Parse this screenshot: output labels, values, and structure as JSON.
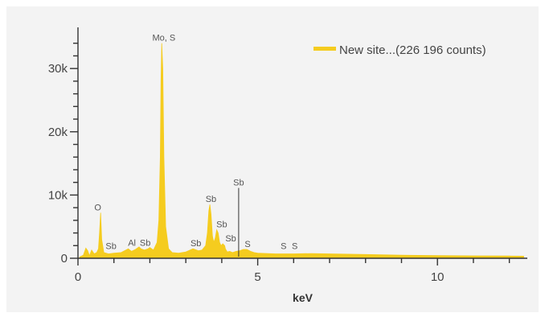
{
  "chart_data": {
    "type": "area",
    "title": "",
    "xlabel": "keV",
    "ylabel": "",
    "xlim": [
      0,
      12.5
    ],
    "ylim": [
      0,
      36000
    ],
    "x_ticks": [
      0,
      5,
      10
    ],
    "x_tick_labels": [
      "0",
      "5",
      "10"
    ],
    "y_ticks": [
      0,
      10000,
      20000,
      30000
    ],
    "y_tick_labels": [
      "0",
      "10k",
      "20k",
      "30k"
    ],
    "grid": false,
    "legend_position": "top-right",
    "fill_color": "#f5cc1f",
    "series": [
      {
        "name": "New site...(226 196 counts)",
        "x": [
          0.05,
          0.15,
          0.22,
          0.27,
          0.32,
          0.38,
          0.45,
          0.52,
          0.57,
          0.6,
          0.63,
          0.66,
          0.72,
          0.85,
          1.0,
          1.2,
          1.4,
          1.49,
          1.6,
          1.7,
          1.75,
          1.85,
          1.95,
          2.0,
          2.1,
          2.2,
          2.25,
          2.29,
          2.31,
          2.33,
          2.36,
          2.39,
          2.44,
          2.52,
          2.62,
          2.8,
          3.0,
          3.2,
          3.35,
          3.45,
          3.55,
          3.6,
          3.64,
          3.67,
          3.7,
          3.74,
          3.78,
          3.82,
          3.86,
          3.9,
          3.94,
          3.98,
          4.03,
          4.08,
          4.1,
          4.15,
          4.22,
          4.3,
          4.4,
          4.5,
          4.6,
          4.7,
          4.8,
          4.9,
          5.0,
          5.5,
          6.0,
          6.5,
          7.0,
          7.5,
          8.0,
          9.0,
          10.0,
          11.0,
          12.0,
          12.4
        ],
        "y": [
          200,
          500,
          1600,
          1200,
          400,
          1300,
          700,
          900,
          1500,
          4000,
          7200,
          3000,
          900,
          700,
          800,
          900,
          1500,
          1100,
          1400,
          1800,
          1500,
          1300,
          1500,
          1700,
          1300,
          2500,
          6000,
          16000,
          28000,
          34000,
          30000,
          16000,
          5000,
          1500,
          900,
          800,
          1000,
          1500,
          1200,
          1300,
          2000,
          4000,
          7500,
          8500,
          7000,
          3500,
          2500,
          3200,
          4500,
          4000,
          2500,
          2000,
          2300,
          2000,
          1500,
          1000,
          1100,
          900,
          1100,
          1200,
          1400,
          1400,
          1100,
          900,
          800,
          700,
          700,
          750,
          700,
          650,
          600,
          500,
          420,
          380,
          350,
          330
        ]
      }
    ],
    "annotations": [
      {
        "label": "Mo, S",
        "x": 2.39,
        "y": 34000
      },
      {
        "label": "O",
        "x": 0.55,
        "y": 7200
      },
      {
        "label": "Sb",
        "x": 0.92,
        "y": 1100
      },
      {
        "label": "Al",
        "x": 1.5,
        "y": 1600
      },
      {
        "label": "Sb",
        "x": 1.87,
        "y": 1600
      },
      {
        "label": "Sb",
        "x": 3.28,
        "y": 1500
      },
      {
        "label": "Sb",
        "x": 3.7,
        "y": 8500
      },
      {
        "label": "Sb",
        "x": 4.0,
        "y": 4500
      },
      {
        "label": "Sb",
        "x": 4.25,
        "y": 2300
      },
      {
        "label": "Sb",
        "x": 4.47,
        "y": 11500,
        "leader": true
      },
      {
        "label": "S",
        "x": 4.72,
        "y": 1400
      },
      {
        "label": "S",
        "x": 5.72,
        "y": 1100
      },
      {
        "label": "S",
        "x": 6.03,
        "y": 1100
      }
    ]
  }
}
